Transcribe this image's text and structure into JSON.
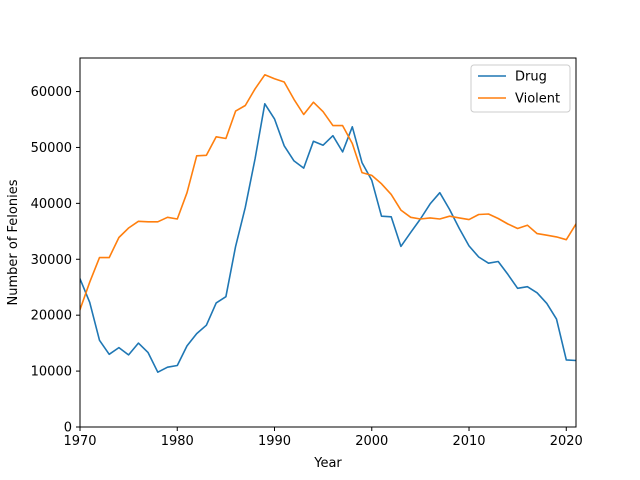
{
  "chart_data": {
    "type": "line",
    "title": "",
    "xlabel": "Year",
    "ylabel": "Number of Felonies",
    "xlim": [
      1970,
      2021
    ],
    "ylim": [
      0,
      66000
    ],
    "xticks": [
      1970,
      1980,
      1990,
      2000,
      2010,
      2020
    ],
    "xtick_labels": [
      "1970",
      "1980",
      "1990",
      "2000",
      "2010",
      "2020"
    ],
    "yticks": [
      0,
      10000,
      20000,
      30000,
      40000,
      50000,
      60000
    ],
    "ytick_labels": [
      "0",
      "10000",
      "20000",
      "30000",
      "40000",
      "50000",
      "60000"
    ],
    "grid": false,
    "legend_position": "top-right",
    "x": [
      1970,
      1971,
      1972,
      1973,
      1974,
      1975,
      1976,
      1977,
      1978,
      1979,
      1980,
      1981,
      1982,
      1983,
      1984,
      1985,
      1986,
      1987,
      1988,
      1989,
      1990,
      1991,
      1992,
      1993,
      1994,
      1995,
      1996,
      1997,
      1998,
      1999,
      2000,
      2001,
      2002,
      2003,
      2004,
      2005,
      2006,
      2007,
      2008,
      2009,
      2010,
      2011,
      2012,
      2013,
      2014,
      2015,
      2016,
      2017,
      2018,
      2019,
      2020,
      2021
    ],
    "series": [
      {
        "name": "Drug",
        "color": "#1f77b4",
        "values": [
          26500,
          22300,
          15500,
          13000,
          14200,
          12900,
          15000,
          13300,
          9800,
          10700,
          11000,
          14500,
          16700,
          18200,
          22200,
          23300,
          32300,
          39300,
          48000,
          57800,
          55100,
          50300,
          47600,
          46300,
          51100,
          50400,
          52100,
          49200,
          53700,
          47300,
          44100,
          37700,
          37600,
          32300,
          34800,
          37200,
          39900,
          41900,
          38900,
          35500,
          32400,
          30400,
          29300,
          29600,
          27300,
          24800,
          25100,
          24000,
          22100,
          19300,
          12000,
          11900
        ]
      },
      {
        "name": "Violent",
        "color": "#ff7f0e",
        "values": [
          21000,
          25900,
          30300,
          30300,
          33900,
          35600,
          36800,
          36700,
          36700,
          37500,
          37200,
          41900,
          48500,
          48600,
          51900,
          51600,
          56500,
          57500,
          60500,
          63000,
          62300,
          61700,
          58600,
          55900,
          58100,
          56400,
          53900,
          53900,
          50700,
          45500,
          45000,
          43500,
          41600,
          38800,
          37500,
          37200,
          37400,
          37200,
          37700,
          37400,
          37100,
          38000,
          38100,
          37300,
          36300,
          35500,
          36100,
          34600,
          34300,
          34000,
          33500,
          36300
        ]
      }
    ]
  }
}
